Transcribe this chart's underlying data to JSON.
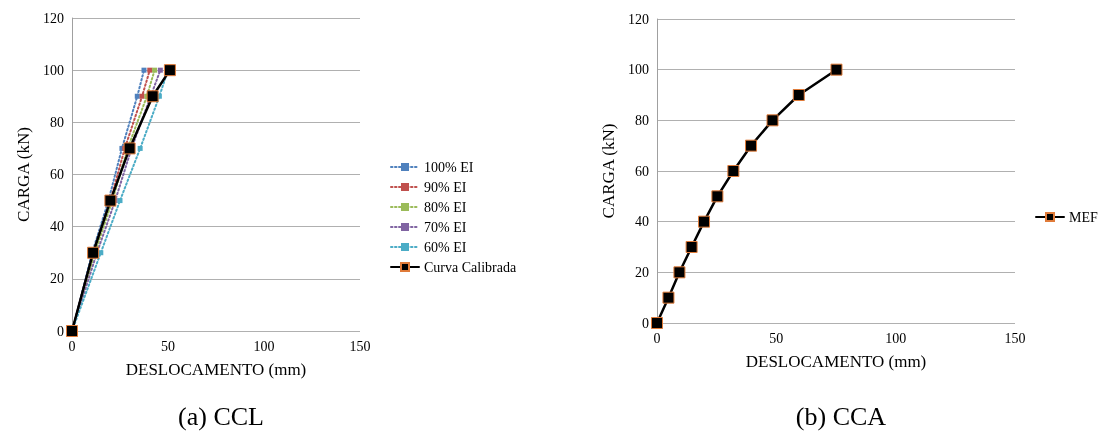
{
  "chart_data": [
    {
      "type": "line",
      "title": "(a) CCL",
      "xlabel": "DESLOCAMENTO (mm)",
      "ylabel": "CARGA (kN)",
      "xlim": [
        0,
        150
      ],
      "xticks": [
        0,
        50,
        100,
        150
      ],
      "ylim": [
        0,
        120
      ],
      "yticks": [
        0,
        20,
        40,
        60,
        80,
        100,
        120
      ],
      "grid": "y",
      "legend": "right",
      "marker": "square",
      "series": [
        {
          "name": "100% EI",
          "color": "#4f81bd",
          "line_style": "dotted",
          "x": [
            0,
            10.5,
            19,
            26,
            34,
            37.5
          ],
          "values": [
            0,
            30,
            50,
            70,
            90,
            100
          ]
        },
        {
          "name": "90% EI",
          "color": "#c0504d",
          "line_style": "dotted",
          "x": [
            0,
            11,
            20,
            27.5,
            36.5,
            40.5
          ],
          "values": [
            0,
            30,
            50,
            70,
            90,
            100
          ]
        },
        {
          "name": "80% EI",
          "color": "#9bbb59",
          "line_style": "dotted",
          "x": [
            0,
            12,
            21,
            29,
            39,
            43
          ],
          "values": [
            0,
            30,
            50,
            70,
            90,
            100
          ]
        },
        {
          "name": "70% EI",
          "color": "#8064a2",
          "line_style": "dotted",
          "x": [
            0,
            13,
            22.5,
            31,
            41,
            46
          ],
          "values": [
            0,
            30,
            50,
            70,
            90,
            100
          ]
        },
        {
          "name": "60% EI",
          "color": "#4bacc6",
          "line_style": "dotted",
          "x": [
            0,
            15,
            25,
            35.5,
            45.5,
            50
          ],
          "values": [
            0,
            30,
            50,
            70,
            90,
            100
          ]
        },
        {
          "name": "Curva Calibrada",
          "color": "#000000",
          "line_style": "solid",
          "x": [
            0,
            11,
            20,
            30,
            42,
            51
          ],
          "values": [
            0,
            30,
            50,
            70,
            90,
            100
          ]
        }
      ]
    },
    {
      "type": "line",
      "title": "(b) CCA",
      "xlabel": "DESLOCAMENTO (mm)",
      "ylabel": "CARGA (kN)",
      "xlim": [
        0,
        150
      ],
      "xticks": [
        0,
        50,
        100,
        150
      ],
      "ylim": [
        0,
        120
      ],
      "yticks": [
        0,
        20,
        40,
        60,
        80,
        100,
        120
      ],
      "grid": "y",
      "legend": "right",
      "marker": "square",
      "series": [
        {
          "name": "MEF",
          "color": "#000000",
          "line_style": "solid",
          "x": [
            0,
            4.8,
            9.4,
            14.5,
            19.7,
            25.3,
            32,
            39.4,
            48.4,
            59.4,
            75.2
          ],
          "values": [
            0,
            10,
            20,
            30,
            40,
            50,
            60,
            70,
            80,
            90,
            100
          ]
        }
      ]
    }
  ]
}
